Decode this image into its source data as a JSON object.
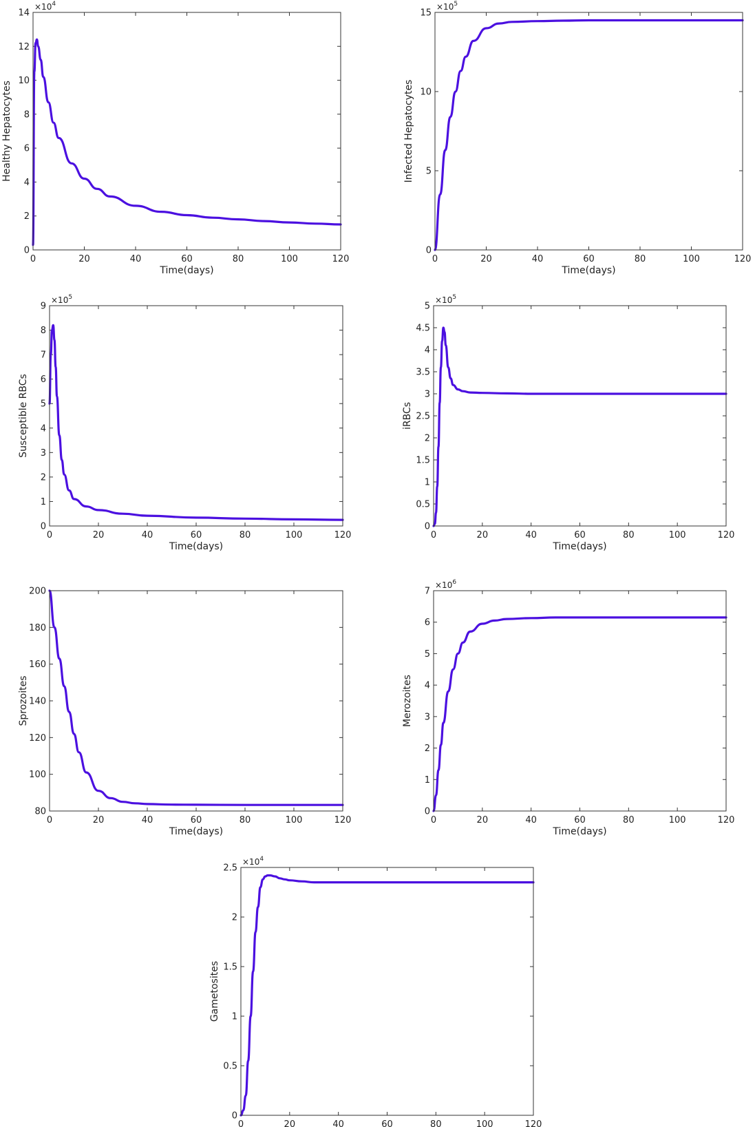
{
  "chart_data": [
    {
      "type": "line",
      "xlabel": "Time(days)",
      "ylabel": "Healthy Hepatocytes",
      "xlim": [
        0,
        120
      ],
      "ylim": [
        0,
        14
      ],
      "xticks": [
        0,
        20,
        40,
        60,
        80,
        100,
        120
      ],
      "xtick_labels": [
        "0",
        "20",
        "40",
        "60",
        "80",
        "100",
        "120"
      ],
      "yticks": [
        0,
        2,
        4,
        6,
        8,
        10,
        12,
        14
      ],
      "ytick_labels": [
        "0",
        "2",
        "4",
        "6",
        "8",
        "10",
        "12",
        "14"
      ],
      "y_exponent": {
        "base": "×10",
        "power": "4"
      },
      "grid": false,
      "series": [
        {
          "color": "#4b10e0",
          "x": [
            0,
            0.5,
            1,
            1.5,
            2,
            3,
            4,
            6,
            8,
            10,
            15,
            20,
            25,
            30,
            40,
            50,
            60,
            70,
            80,
            90,
            100,
            110,
            120
          ],
          "y": [
            0.3,
            10.5,
            12.2,
            12.4,
            12.0,
            11.2,
            10.2,
            8.7,
            7.5,
            6.6,
            5.1,
            4.2,
            3.6,
            3.15,
            2.6,
            2.25,
            2.05,
            1.9,
            1.8,
            1.7,
            1.62,
            1.55,
            1.5
          ]
        }
      ]
    },
    {
      "type": "line",
      "xlabel": "Time(days)",
      "ylabel": "Infected Hepatocytes",
      "xlim": [
        0,
        120
      ],
      "ylim": [
        0,
        15
      ],
      "xticks": [
        0,
        20,
        40,
        60,
        80,
        100,
        120
      ],
      "xtick_labels": [
        "0",
        "20",
        "40",
        "60",
        "80",
        "100",
        "120"
      ],
      "yticks": [
        0,
        5,
        10,
        15
      ],
      "ytick_labels": [
        "0",
        "5",
        "10",
        "15"
      ],
      "y_exponent": {
        "base": "×10",
        "power": "5"
      },
      "grid": false,
      "series": [
        {
          "color": "#4b10e0",
          "x": [
            0,
            2,
            4,
            6,
            8,
            10,
            12,
            15,
            20,
            25,
            30,
            40,
            50,
            60,
            80,
            100,
            120
          ],
          "y": [
            0,
            3.5,
            6.3,
            8.4,
            10.0,
            11.3,
            12.2,
            13.2,
            14.0,
            14.3,
            14.4,
            14.45,
            14.48,
            14.5,
            14.5,
            14.5,
            14.5
          ]
        }
      ]
    },
    {
      "type": "line",
      "xlabel": "Time(days)",
      "ylabel": "Susceptible RBCs",
      "xlim": [
        0,
        120
      ],
      "ylim": [
        0,
        9
      ],
      "xticks": [
        0,
        20,
        40,
        60,
        80,
        100,
        120
      ],
      "xtick_labels": [
        "0",
        "20",
        "40",
        "60",
        "80",
        "100",
        "120"
      ],
      "yticks": [
        0,
        1,
        2,
        3,
        4,
        5,
        6,
        7,
        8,
        9
      ],
      "ytick_labels": [
        "0",
        "1",
        "2",
        "3",
        "4",
        "5",
        "6",
        "7",
        "8",
        "9"
      ],
      "y_exponent": {
        "base": "×10",
        "power": "5"
      },
      "grid": false,
      "series": [
        {
          "color": "#4b10e0",
          "x": [
            0,
            0.5,
            1,
            1.5,
            2,
            2.5,
            3,
            4,
            5,
            6,
            8,
            10,
            15,
            20,
            30,
            40,
            60,
            80,
            100,
            120
          ],
          "y": [
            5.0,
            7.0,
            8.0,
            8.2,
            7.6,
            6.5,
            5.3,
            3.7,
            2.7,
            2.1,
            1.45,
            1.1,
            0.8,
            0.65,
            0.5,
            0.42,
            0.34,
            0.3,
            0.27,
            0.25
          ]
        }
      ]
    },
    {
      "type": "line",
      "xlabel": "Time(days)",
      "ylabel": "iRBCs",
      "xlim": [
        0,
        120
      ],
      "ylim": [
        0,
        5
      ],
      "xticks": [
        0,
        20,
        40,
        60,
        80,
        100,
        120
      ],
      "xtick_labels": [
        "0",
        "20",
        "40",
        "60",
        "80",
        "100",
        "120"
      ],
      "yticks": [
        0,
        0.5,
        1,
        1.5,
        2,
        2.5,
        3,
        3.5,
        4,
        4.5,
        5
      ],
      "ytick_labels": [
        "0",
        "0.5",
        "1",
        "1.5",
        "2",
        "2.5",
        "3",
        "3.5",
        "4",
        "4.5",
        "5"
      ],
      "y_exponent": {
        "base": "×10",
        "power": "5"
      },
      "grid": false,
      "series": [
        {
          "color": "#4b10e0",
          "x": [
            0,
            0.5,
            1,
            1.5,
            2,
            2.5,
            3,
            3.5,
            4,
            4.5,
            5,
            6,
            7,
            8,
            10,
            12,
            15,
            20,
            30,
            40,
            60,
            80,
            100,
            120
          ],
          "y": [
            0,
            0.05,
            0.3,
            0.9,
            1.8,
            2.8,
            3.6,
            4.2,
            4.5,
            4.4,
            4.1,
            3.6,
            3.35,
            3.2,
            3.1,
            3.06,
            3.03,
            3.02,
            3.01,
            3.0,
            3.0,
            3.0,
            3.0,
            3.0
          ]
        }
      ]
    },
    {
      "type": "line",
      "xlabel": "Time(days)",
      "ylabel": "Sprozoites",
      "xlim": [
        0,
        120
      ],
      "ylim": [
        80,
        200
      ],
      "xticks": [
        0,
        20,
        40,
        60,
        80,
        100,
        120
      ],
      "xtick_labels": [
        "0",
        "20",
        "40",
        "60",
        "80",
        "100",
        "120"
      ],
      "yticks": [
        80,
        100,
        120,
        140,
        160,
        180,
        200
      ],
      "ytick_labels": [
        "80",
        "100",
        "120",
        "140",
        "160",
        "180",
        "200"
      ],
      "grid": false,
      "series": [
        {
          "color": "#4b10e0",
          "x": [
            0,
            2,
            4,
            6,
            8,
            10,
            12,
            15,
            20,
            25,
            30,
            35,
            40,
            50,
            60,
            80,
            100,
            120
          ],
          "y": [
            200,
            180,
            163,
            148,
            134,
            122,
            112,
            101,
            91,
            87,
            85,
            84.2,
            83.8,
            83.5,
            83.4,
            83.3,
            83.3,
            83.3
          ]
        }
      ]
    },
    {
      "type": "line",
      "xlabel": "Time(days)",
      "ylabel": "Merozoites",
      "xlim": [
        0,
        120
      ],
      "ylim": [
        0,
        7
      ],
      "xticks": [
        0,
        20,
        40,
        60,
        80,
        100,
        120
      ],
      "xtick_labels": [
        "0",
        "20",
        "40",
        "60",
        "80",
        "100",
        "120"
      ],
      "yticks": [
        0,
        1,
        2,
        3,
        4,
        5,
        6,
        7
      ],
      "ytick_labels": [
        "0",
        "1",
        "2",
        "3",
        "4",
        "5",
        "6",
        "7"
      ],
      "y_exponent": {
        "base": "×10",
        "power": "6"
      },
      "grid": false,
      "series": [
        {
          "color": "#4b10e0",
          "x": [
            0,
            1,
            2,
            3,
            4,
            6,
            8,
            10,
            12,
            15,
            20,
            25,
            30,
            40,
            50,
            60,
            80,
            100,
            120
          ],
          "y": [
            0,
            0.5,
            1.3,
            2.1,
            2.8,
            3.8,
            4.5,
            5.0,
            5.35,
            5.7,
            5.95,
            6.05,
            6.1,
            6.13,
            6.15,
            6.15,
            6.15,
            6.15,
            6.15
          ]
        }
      ]
    },
    {
      "type": "line",
      "xlabel": "Time(days)",
      "ylabel": "Gametosites",
      "xlim": [
        0,
        120
      ],
      "ylim": [
        0,
        2.5
      ],
      "xticks": [
        0,
        20,
        40,
        60,
        80,
        100,
        120
      ],
      "xtick_labels": [
        "0",
        "20",
        "40",
        "60",
        "80",
        "100",
        "120"
      ],
      "yticks": [
        0,
        0.5,
        1,
        1.5,
        2,
        2.5
      ],
      "ytick_labels": [
        "0",
        "0.5",
        "1",
        "1.5",
        "2",
        "2.5"
      ],
      "y_exponent": {
        "base": "×10",
        "power": "4"
      },
      "grid": false,
      "series": [
        {
          "color": "#4b10e0",
          "x": [
            0,
            1,
            2,
            3,
            4,
            5,
            6,
            7,
            8,
            9,
            10,
            11,
            12,
            14,
            16,
            18,
            20,
            25,
            30,
            40,
            60,
            80,
            100,
            120
          ],
          "y": [
            0,
            0.05,
            0.2,
            0.55,
            1.0,
            1.45,
            1.85,
            2.1,
            2.3,
            2.38,
            2.41,
            2.42,
            2.42,
            2.41,
            2.39,
            2.38,
            2.37,
            2.36,
            2.35,
            2.35,
            2.35,
            2.35,
            2.35,
            2.35
          ]
        }
      ]
    }
  ]
}
